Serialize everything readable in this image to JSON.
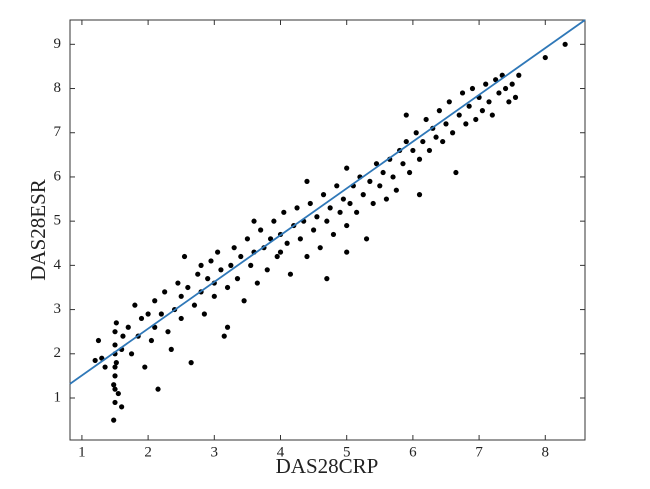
{
  "chart_data": {
    "type": "scatter",
    "xlabel": "DAS28CRP",
    "ylabel": "DAS28ESR",
    "xlim": [
      0.82,
      8.6
    ],
    "ylim": [
      0.05,
      9.55
    ],
    "xticks": [
      1,
      2,
      3,
      4,
      5,
      6,
      7,
      8
    ],
    "yticks": [
      1,
      2,
      3,
      4,
      5,
      6,
      7,
      8,
      9
    ],
    "point_color": "#000000",
    "line_color": "#2f78b8",
    "fit_line": {
      "x": [
        0.82,
        8.6
      ],
      "y": [
        1.32,
        9.55
      ]
    },
    "x": [
      1.2,
      1.25,
      1.3,
      1.35,
      1.48,
      1.5,
      1.5,
      1.5,
      1.5,
      1.5,
      1.5,
      1.5,
      1.52,
      1.48,
      1.52,
      1.55,
      1.6,
      1.6,
      1.62,
      1.7,
      1.75,
      1.8,
      1.85,
      1.9,
      1.95,
      2.0,
      2.05,
      2.1,
      2.1,
      2.15,
      2.2,
      2.25,
      2.3,
      2.35,
      2.4,
      2.45,
      2.5,
      2.5,
      2.55,
      2.6,
      2.65,
      2.7,
      2.75,
      2.8,
      2.85,
      2.9,
      2.95,
      3.0,
      3.0,
      3.05,
      3.1,
      3.15,
      3.2,
      3.25,
      3.3,
      3.35,
      3.4,
      3.45,
      3.5,
      3.55,
      3.6,
      3.65,
      3.7,
      3.75,
      3.8,
      3.85,
      3.9,
      3.95,
      4.0,
      4.0,
      4.05,
      4.1,
      4.15,
      4.2,
      4.25,
      4.3,
      4.35,
      4.4,
      4.45,
      4.5,
      4.55,
      4.6,
      4.65,
      4.7,
      4.7,
      4.75,
      4.8,
      4.85,
      4.9,
      4.95,
      5.0,
      5.0,
      5.05,
      5.1,
      5.15,
      5.2,
      5.25,
      5.3,
      5.35,
      5.4,
      5.45,
      5.5,
      5.55,
      5.6,
      5.65,
      5.7,
      5.75,
      5.8,
      5.85,
      5.9,
      5.95,
      6.0,
      6.05,
      6.1,
      6.15,
      6.2,
      6.25,
      6.3,
      6.35,
      6.4,
      6.45,
      6.5,
      6.55,
      6.6,
      6.65,
      6.7,
      6.75,
      6.8,
      6.85,
      6.9,
      6.95,
      7.0,
      7.05,
      7.1,
      7.15,
      7.2,
      7.25,
      7.3,
      7.35,
      7.4,
      7.45,
      7.5,
      7.55,
      7.6,
      8.0,
      8.3,
      5.9,
      4.4,
      3.6,
      2.8,
      6.1,
      5.0,
      3.2
    ],
    "y": [
      1.85,
      2.3,
      1.9,
      1.7,
      0.5,
      0.9,
      1.2,
      1.5,
      1.7,
      2.0,
      2.2,
      2.5,
      2.7,
      1.3,
      1.8,
      1.1,
      0.8,
      2.1,
      2.4,
      2.6,
      2.0,
      3.1,
      2.4,
      2.8,
      1.7,
      2.9,
      2.3,
      3.2,
      2.6,
      1.2,
      2.9,
      3.4,
      2.5,
      2.1,
      3.0,
      3.6,
      2.8,
      3.3,
      4.2,
      3.5,
      1.8,
      3.1,
      3.8,
      3.4,
      2.9,
      3.7,
      4.1,
      3.3,
      3.6,
      4.3,
      3.9,
      2.4,
      3.5,
      4.0,
      4.4,
      3.7,
      4.2,
      3.2,
      4.6,
      4.0,
      4.3,
      3.6,
      4.8,
      4.4,
      3.9,
      4.6,
      5.0,
      4.2,
      4.7,
      4.3,
      5.2,
      4.5,
      3.8,
      4.9,
      5.3,
      4.6,
      5.0,
      4.2,
      5.4,
      4.8,
      5.1,
      4.4,
      5.6,
      3.7,
      5.0,
      5.3,
      4.7,
      5.8,
      5.2,
      5.5,
      4.9,
      6.2,
      5.4,
      5.8,
      5.2,
      6.0,
      5.6,
      4.6,
      5.9,
      5.4,
      6.3,
      5.8,
      6.1,
      5.5,
      6.4,
      6.0,
      5.7,
      6.6,
      6.3,
      6.8,
      6.1,
      6.6,
      7.0,
      6.4,
      6.8,
      7.3,
      6.6,
      7.1,
      6.9,
      7.5,
      6.8,
      7.2,
      7.7,
      7.0,
      6.1,
      7.4,
      7.9,
      7.2,
      7.6,
      8.0,
      7.3,
      7.8,
      7.5,
      8.1,
      7.7,
      7.4,
      8.2,
      7.9,
      8.3,
      8.0,
      7.7,
      8.1,
      7.8,
      8.3,
      8.7,
      9.0,
      7.4,
      5.9,
      5.0,
      4.0,
      5.6,
      4.3,
      2.6
    ]
  }
}
